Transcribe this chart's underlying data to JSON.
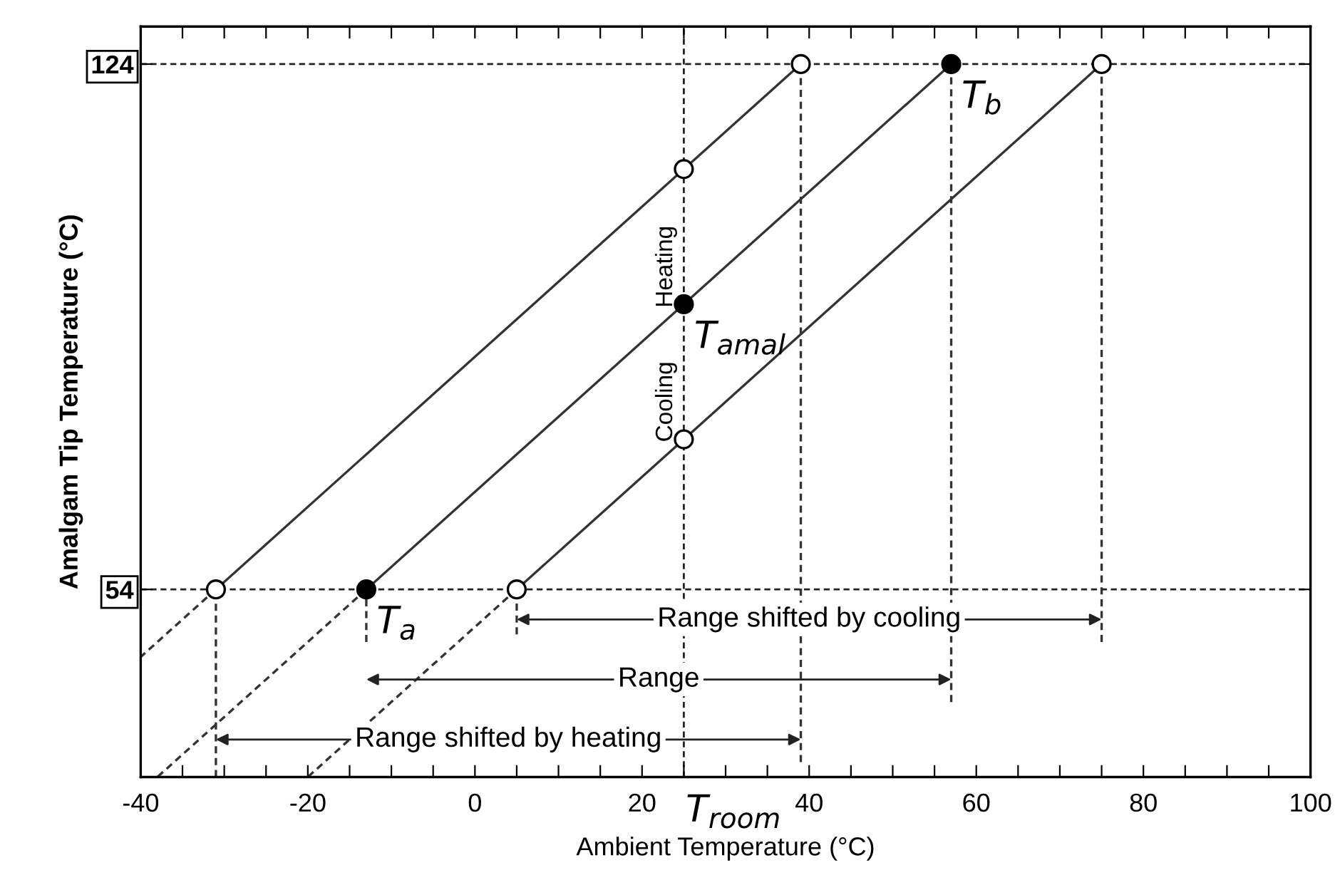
{
  "chart_data": {
    "type": "line",
    "xlabel": "Ambient Temperature (°C)",
    "ylabel": "Amalgam Tip Temperature (°C)",
    "xlim": [
      -40,
      100
    ],
    "ylim": [
      29,
      129
    ],
    "xticks": [
      -40,
      {
        "value": -35,
        "label": null
      },
      {
        "value": -30,
        "label": null
      },
      {
        "value": -25,
        "label": null
      },
      -20,
      {
        "value": -15,
        "label": null
      },
      {
        "value": -10,
        "label": null
      },
      {
        "value": -5,
        "label": null
      },
      0,
      {
        "value": 5,
        "label": null
      },
      {
        "value": 10,
        "label": null
      },
      {
        "value": 15,
        "label": null
      },
      20,
      {
        "value": 25,
        "label": null
      },
      {
        "value": 30,
        "label": null
      },
      {
        "value": 35,
        "label": null
      },
      40,
      {
        "value": 45,
        "label": null
      },
      {
        "value": 50,
        "label": null
      },
      {
        "value": 55,
        "label": null
      },
      60,
      {
        "value": 65,
        "label": null
      },
      {
        "value": 70,
        "label": null
      },
      {
        "value": 75,
        "label": null
      },
      80,
      {
        "value": 85,
        "label": null
      },
      {
        "value": 90,
        "label": null
      },
      {
        "value": 95,
        "label": null
      },
      100
    ],
    "yticks": [
      54,
      124
    ],
    "grid": false,
    "series": [
      {
        "x": [
          -31,
          39
        ],
        "values": [
          54,
          124
        ],
        "color": "#333333",
        "line_style": "solid",
        "marker": "none"
      },
      {
        "x": [
          -13,
          57
        ],
        "values": [
          54,
          124
        ],
        "color": "#333333",
        "line_style": "solid",
        "marker": "none"
      },
      {
        "x": [
          5,
          75
        ],
        "values": [
          54,
          124
        ],
        "color": "#333333",
        "line_style": "solid",
        "marker": "none"
      },
      {
        "x": [
          -40,
          -31
        ],
        "values": [
          45,
          54
        ],
        "color": "#333333",
        "line_style": "dashed",
        "marker": "none"
      },
      {
        "x": [
          -38,
          -13
        ],
        "values": [
          29,
          54
        ],
        "color": "#333333",
        "line_style": "dashed",
        "marker": "none"
      },
      {
        "x": [
          -20,
          5
        ],
        "values": [
          29,
          54
        ],
        "color": "#333333",
        "line_style": "dashed",
        "marker": "none"
      },
      {
        "x": [
          39,
          39
        ],
        "values": [
          124,
          31
        ],
        "color": "#333333",
        "line_style": "dashed",
        "marker": "none"
      },
      {
        "x": [
          57,
          57
        ],
        "values": [
          124,
          39
        ],
        "color": "#333333",
        "line_style": "dashed",
        "marker": "none"
      },
      {
        "x": [
          75,
          75
        ],
        "values": [
          124,
          47
        ],
        "color": "#333333",
        "line_style": "dashed",
        "marker": "none"
      },
      {
        "x": [
          -31,
          -31
        ],
        "values": [
          54,
          29
        ],
        "color": "#333333",
        "line_style": "dashed",
        "marker": "none"
      },
      {
        "x": [
          -13,
          -13
        ],
        "values": [
          54,
          47
        ],
        "color": "#333333",
        "line_style": "dashed",
        "marker": "none"
      },
      {
        "x": [
          5,
          5
        ],
        "values": [
          54,
          48
        ],
        "color": "#333333",
        "line_style": "dashed",
        "marker": "none"
      },
      {
        "type": "scatter",
        "x": [
          -31,
          39,
          25,
          25,
          5,
          75
        ],
        "values": [
          54,
          124,
          110,
          74,
          54,
          124
        ],
        "color": "#ffffff",
        "marker": "circle"
      },
      {
        "type": "scatter",
        "x": [
          -13,
          57,
          25
        ],
        "values": [
          54,
          124,
          92
        ],
        "color": "#000000",
        "marker": "circle"
      }
    ],
    "ref_lines": [
      {
        "axis": "y",
        "value": 54,
        "line_style": "dashed"
      },
      {
        "axis": "y",
        "value": 124,
        "line_style": "dashed"
      },
      {
        "axis": "x",
        "value": 25,
        "line_style": "dashed"
      }
    ],
    "annotations": [
      {
        "text": "T$_{a}$",
        "x": -13,
        "y": 54
      },
      {
        "text": "T$_{b}$",
        "x": 57,
        "y": 124
      },
      {
        "text": "T$_{amal}$",
        "x": 25,
        "y": 92
      },
      {
        "text": "T$_{room}$",
        "x": 25,
        "y": 29
      },
      {
        "text": "Heating",
        "x": 25,
        "y": 97
      },
      {
        "text": "Cooling",
        "x": 25,
        "y": 79
      },
      "Range shifted by cooling",
      "Range",
      "Range shifted by heating"
    ]
  }
}
